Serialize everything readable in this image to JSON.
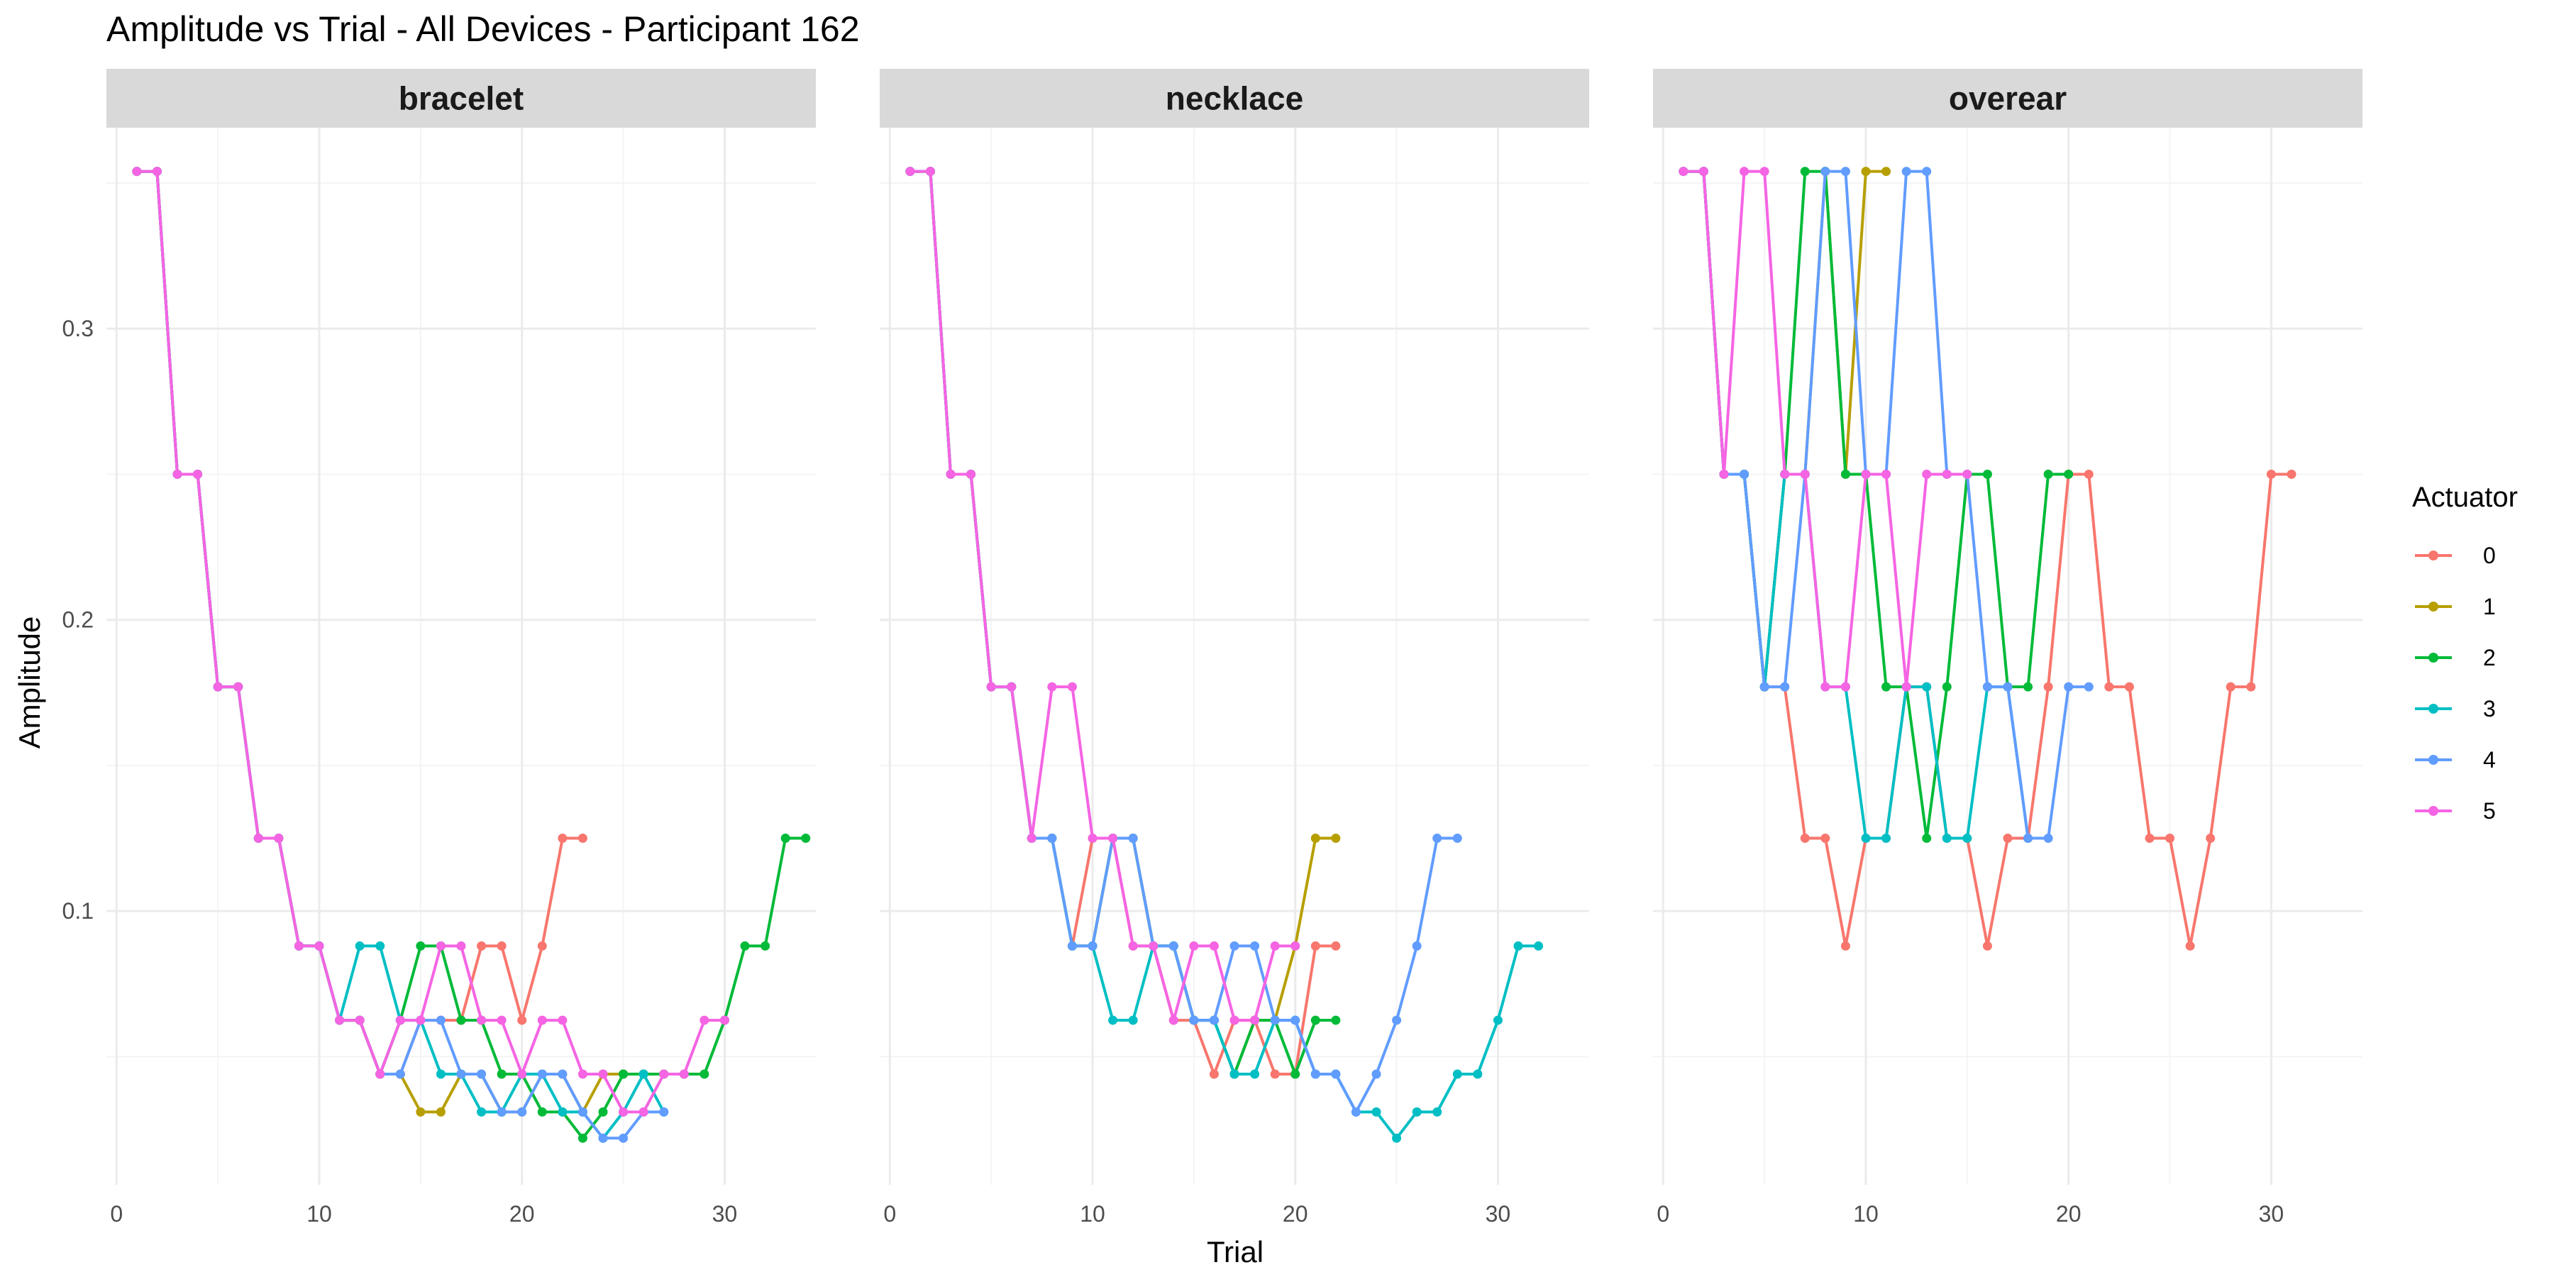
{
  "colors": {
    "0": "#F8766D",
    "1": "#B79F00",
    "2": "#00BA38",
    "3": "#00BFC4",
    "4": "#619CFF",
    "5": "#F564E3",
    "strip_bg": "#D9D9D9",
    "grid_major": "#EBEBEB",
    "grid_minor": "#F4F4F4"
  },
  "chart_data": {
    "type": "line",
    "title": "Amplitude vs Trial - All Devices - Participant 162",
    "xlabel": "Trial",
    "ylabel": "Amplitude",
    "xlim": [
      -0.5,
      34.5
    ],
    "ylim": [
      0.006,
      0.369
    ],
    "x_ticks": [
      0,
      10,
      20,
      30
    ],
    "y_ticks": [
      0.1,
      0.2,
      0.3
    ],
    "y_tick_labels": [
      "0.1",
      "0.2",
      "0.3"
    ],
    "grid": true,
    "legend": {
      "title": "Actuator",
      "position": "right",
      "entries": [
        "0",
        "1",
        "2",
        "3",
        "4",
        "5"
      ]
    },
    "facets": [
      {
        "label": "bracelet",
        "series": [
          {
            "name": "0",
            "x": [
              1,
              2,
              3,
              4,
              5,
              6,
              7,
              8,
              9,
              10,
              11,
              12,
              13,
              14,
              15,
              16,
              17,
              18,
              19,
              20,
              21,
              22,
              23
            ],
            "y": [
              0.354,
              0.354,
              0.25,
              0.25,
              0.177,
              0.177,
              0.125,
              0.125,
              0.088,
              0.088,
              0.0625,
              0.0625,
              0.044,
              0.044,
              0.0625,
              0.0625,
              0.0625,
              0.088,
              0.088,
              0.0625,
              0.088,
              0.125,
              0.125
            ]
          },
          {
            "name": "1",
            "x": [
              1,
              2,
              3,
              4,
              5,
              6,
              7,
              8,
              9,
              10,
              11,
              12,
              13,
              14,
              15,
              16,
              17,
              18,
              19,
              20,
              21,
              22,
              23,
              24,
              25,
              26,
              27
            ],
            "y": [
              0.354,
              0.354,
              0.25,
              0.25,
              0.177,
              0.177,
              0.125,
              0.125,
              0.088,
              0.088,
              0.0625,
              0.0625,
              0.044,
              0.044,
              0.031,
              0.031,
              0.044,
              0.044,
              0.031,
              0.031,
              0.044,
              0.044,
              0.031,
              0.044,
              0.044,
              0.044,
              0.044
            ]
          },
          {
            "name": "2",
            "x": [
              1,
              2,
              3,
              4,
              5,
              6,
              7,
              8,
              9,
              10,
              11,
              12,
              13,
              14,
              15,
              16,
              17,
              18,
              19,
              20,
              21,
              22,
              23,
              24,
              25,
              26,
              27,
              28,
              29,
              30,
              31,
              32,
              33,
              34
            ],
            "y": [
              0.354,
              0.354,
              0.25,
              0.25,
              0.177,
              0.177,
              0.125,
              0.125,
              0.088,
              0.088,
              0.0625,
              0.0625,
              0.044,
              0.0625,
              0.088,
              0.088,
              0.0625,
              0.0625,
              0.044,
              0.044,
              0.031,
              0.031,
              0.022,
              0.031,
              0.044,
              0.044,
              0.044,
              0.044,
              0.044,
              0.0625,
              0.088,
              0.088,
              0.125,
              0.125
            ]
          },
          {
            "name": "3",
            "x": [
              1,
              2,
              3,
              4,
              5,
              6,
              7,
              8,
              9,
              10,
              11,
              12,
              13,
              14,
              15,
              16,
              17,
              18,
              19,
              20,
              21,
              22,
              23,
              24,
              25,
              26,
              27
            ],
            "y": [
              0.354,
              0.354,
              0.25,
              0.25,
              0.177,
              0.177,
              0.125,
              0.125,
              0.088,
              0.088,
              0.0625,
              0.088,
              0.088,
              0.0625,
              0.0625,
              0.044,
              0.044,
              0.031,
              0.031,
              0.044,
              0.044,
              0.031,
              0.031,
              0.022,
              0.031,
              0.044,
              0.031
            ]
          },
          {
            "name": "4",
            "x": [
              1,
              2,
              3,
              4,
              5,
              6,
              7,
              8,
              9,
              10,
              11,
              12,
              13,
              14,
              15,
              16,
              17,
              18,
              19,
              20,
              21,
              22,
              23,
              24,
              25,
              26,
              27
            ],
            "y": [
              0.354,
              0.354,
              0.25,
              0.25,
              0.177,
              0.177,
              0.125,
              0.125,
              0.088,
              0.088,
              0.0625,
              0.0625,
              0.044,
              0.044,
              0.0625,
              0.0625,
              0.044,
              0.044,
              0.031,
              0.031,
              0.044,
              0.044,
              0.031,
              0.022,
              0.022,
              0.031,
              0.031
            ]
          },
          {
            "name": "5",
            "x": [
              1,
              2,
              3,
              4,
              5,
              6,
              7,
              8,
              9,
              10,
              11,
              12,
              13,
              14,
              15,
              16,
              17,
              18,
              19,
              20,
              21,
              22,
              23,
              24,
              25,
              26,
              27,
              28,
              29,
              30
            ],
            "y": [
              0.354,
              0.354,
              0.25,
              0.25,
              0.177,
              0.177,
              0.125,
              0.125,
              0.088,
              0.088,
              0.0625,
              0.0625,
              0.044,
              0.0625,
              0.0625,
              0.088,
              0.088,
              0.0625,
              0.0625,
              0.044,
              0.0625,
              0.0625,
              0.044,
              0.044,
              0.031,
              0.031,
              0.044,
              0.044,
              0.0625,
              0.0625
            ]
          }
        ]
      },
      {
        "label": "necklace",
        "series": [
          {
            "name": "0",
            "x": [
              1,
              2,
              3,
              4,
              5,
              6,
              7,
              8,
              9,
              10,
              11,
              12,
              13,
              14,
              15,
              16,
              17,
              18,
              19,
              20,
              21,
              22
            ],
            "y": [
              0.354,
              0.354,
              0.25,
              0.25,
              0.177,
              0.177,
              0.125,
              0.125,
              0.088,
              0.125,
              0.125,
              0.088,
              0.088,
              0.0625,
              0.0625,
              0.044,
              0.0625,
              0.0625,
              0.044,
              0.044,
              0.088,
              0.088
            ]
          },
          {
            "name": "1",
            "x": [
              1,
              2,
              3,
              4,
              5,
              6,
              7,
              8,
              9,
              10,
              11,
              12,
              13,
              14,
              15,
              16,
              17,
              18,
              19,
              20,
              21,
              22
            ],
            "y": [
              0.354,
              0.354,
              0.25,
              0.25,
              0.177,
              0.177,
              0.125,
              0.125,
              0.088,
              0.088,
              0.125,
              0.125,
              0.088,
              0.088,
              0.0625,
              0.0625,
              0.044,
              0.0625,
              0.0625,
              0.088,
              0.125,
              0.125
            ]
          },
          {
            "name": "2",
            "x": [
              1,
              2,
              3,
              4,
              5,
              6,
              7,
              8,
              9,
              10,
              11,
              12,
              13,
              14,
              15,
              16,
              17,
              18,
              19,
              20,
              21,
              22
            ],
            "y": [
              0.354,
              0.354,
              0.25,
              0.25,
              0.177,
              0.177,
              0.125,
              0.125,
              0.088,
              0.088,
              0.125,
              0.125,
              0.088,
              0.088,
              0.0625,
              0.0625,
              0.044,
              0.0625,
              0.0625,
              0.044,
              0.0625,
              0.0625
            ]
          },
          {
            "name": "3",
            "x": [
              1,
              2,
              3,
              4,
              5,
              6,
              7,
              8,
              9,
              10,
              11,
              12,
              13,
              14,
              15,
              16,
              17,
              18,
              19,
              20,
              21,
              22,
              23,
              24,
              25,
              26,
              27,
              28,
              29,
              30,
              31,
              32
            ],
            "y": [
              0.354,
              0.354,
              0.25,
              0.25,
              0.177,
              0.177,
              0.125,
              0.125,
              0.088,
              0.088,
              0.0625,
              0.0625,
              0.088,
              0.088,
              0.0625,
              0.0625,
              0.044,
              0.044,
              0.0625,
              0.0625,
              0.044,
              0.044,
              0.031,
              0.031,
              0.022,
              0.031,
              0.031,
              0.044,
              0.044,
              0.0625,
              0.088,
              0.088
            ]
          },
          {
            "name": "4",
            "x": [
              1,
              2,
              3,
              4,
              5,
              6,
              7,
              8,
              9,
              10,
              11,
              12,
              13,
              14,
              15,
              16,
              17,
              18,
              19,
              20,
              21,
              22,
              23,
              24,
              25,
              26,
              27,
              28
            ],
            "y": [
              0.354,
              0.354,
              0.25,
              0.25,
              0.177,
              0.177,
              0.125,
              0.125,
              0.088,
              0.088,
              0.125,
              0.125,
              0.088,
              0.088,
              0.0625,
              0.0625,
              0.088,
              0.088,
              0.0625,
              0.0625,
              0.044,
              0.044,
              0.031,
              0.044,
              0.0625,
              0.088,
              0.125,
              0.125
            ]
          },
          {
            "name": "5",
            "x": [
              1,
              2,
              3,
              4,
              5,
              6,
              7,
              8,
              9,
              10,
              11,
              12,
              13,
              14,
              15,
              16,
              17,
              18,
              19,
              20
            ],
            "y": [
              0.354,
              0.354,
              0.25,
              0.25,
              0.177,
              0.177,
              0.125,
              0.177,
              0.177,
              0.125,
              0.125,
              0.088,
              0.088,
              0.0625,
              0.088,
              0.088,
              0.0625,
              0.0625,
              0.088,
              0.088
            ]
          }
        ]
      },
      {
        "label": "overear",
        "series": [
          {
            "name": "0",
            "x": [
              1,
              2,
              3,
              4,
              5,
              6,
              7,
              8,
              9,
              10,
              11,
              12,
              13,
              14,
              15,
              16,
              17,
              18,
              19,
              20,
              21,
              22,
              23,
              24,
              25,
              26,
              27,
              28,
              29,
              30,
              31
            ],
            "y": [
              0.354,
              0.354,
              0.25,
              0.25,
              0.177,
              0.177,
              0.125,
              0.125,
              0.088,
              0.125,
              0.125,
              0.177,
              0.177,
              0.125,
              0.125,
              0.088,
              0.125,
              0.125,
              0.177,
              0.25,
              0.25,
              0.177,
              0.177,
              0.125,
              0.125,
              0.088,
              0.125,
              0.177,
              0.177,
              0.25,
              0.25
            ]
          },
          {
            "name": "1",
            "x": [
              1,
              2,
              3,
              4,
              5,
              6,
              7,
              8,
              9,
              10,
              11
            ],
            "y": [
              0.354,
              0.354,
              0.25,
              0.25,
              0.177,
              0.25,
              0.25,
              0.354,
              0.25,
              0.354,
              0.354
            ]
          },
          {
            "name": "2",
            "x": [
              1,
              2,
              3,
              4,
              5,
              6,
              7,
              8,
              9,
              10,
              11,
              12,
              13,
              14,
              15,
              16,
              17,
              18,
              19,
              20
            ],
            "y": [
              0.354,
              0.354,
              0.25,
              0.25,
              0.177,
              0.25,
              0.354,
              0.354,
              0.25,
              0.25,
              0.177,
              0.177,
              0.125,
              0.177,
              0.25,
              0.25,
              0.177,
              0.177,
              0.25,
              0.25
            ]
          },
          {
            "name": "3",
            "x": [
              1,
              2,
              3,
              4,
              5,
              6,
              7,
              8,
              9,
              10,
              11,
              12,
              13,
              14,
              15,
              16,
              17,
              18
            ],
            "y": [
              0.354,
              0.354,
              0.25,
              0.25,
              0.177,
              0.25,
              0.25,
              0.177,
              0.177,
              0.125,
              0.125,
              0.177,
              0.177,
              0.125,
              0.125,
              0.177,
              0.177,
              0.125
            ]
          },
          {
            "name": "4",
            "x": [
              1,
              2,
              3,
              4,
              5,
              6,
              7,
              8,
              9,
              10,
              11,
              12,
              13,
              14,
              15,
              16,
              17,
              18,
              19,
              20,
              21
            ],
            "y": [
              0.354,
              0.354,
              0.25,
              0.25,
              0.177,
              0.177,
              0.25,
              0.354,
              0.354,
              0.25,
              0.25,
              0.354,
              0.354,
              0.25,
              0.25,
              0.177,
              0.177,
              0.125,
              0.125,
              0.177,
              0.177
            ]
          },
          {
            "name": "5",
            "x": [
              1,
              2,
              3,
              4,
              5,
              6,
              7,
              8,
              9,
              10,
              11,
              12,
              13,
              14,
              15
            ],
            "y": [
              0.354,
              0.354,
              0.25,
              0.354,
              0.354,
              0.25,
              0.25,
              0.177,
              0.177,
              0.25,
              0.25,
              0.177,
              0.25,
              0.25,
              0.25
            ]
          }
        ]
      }
    ]
  }
}
